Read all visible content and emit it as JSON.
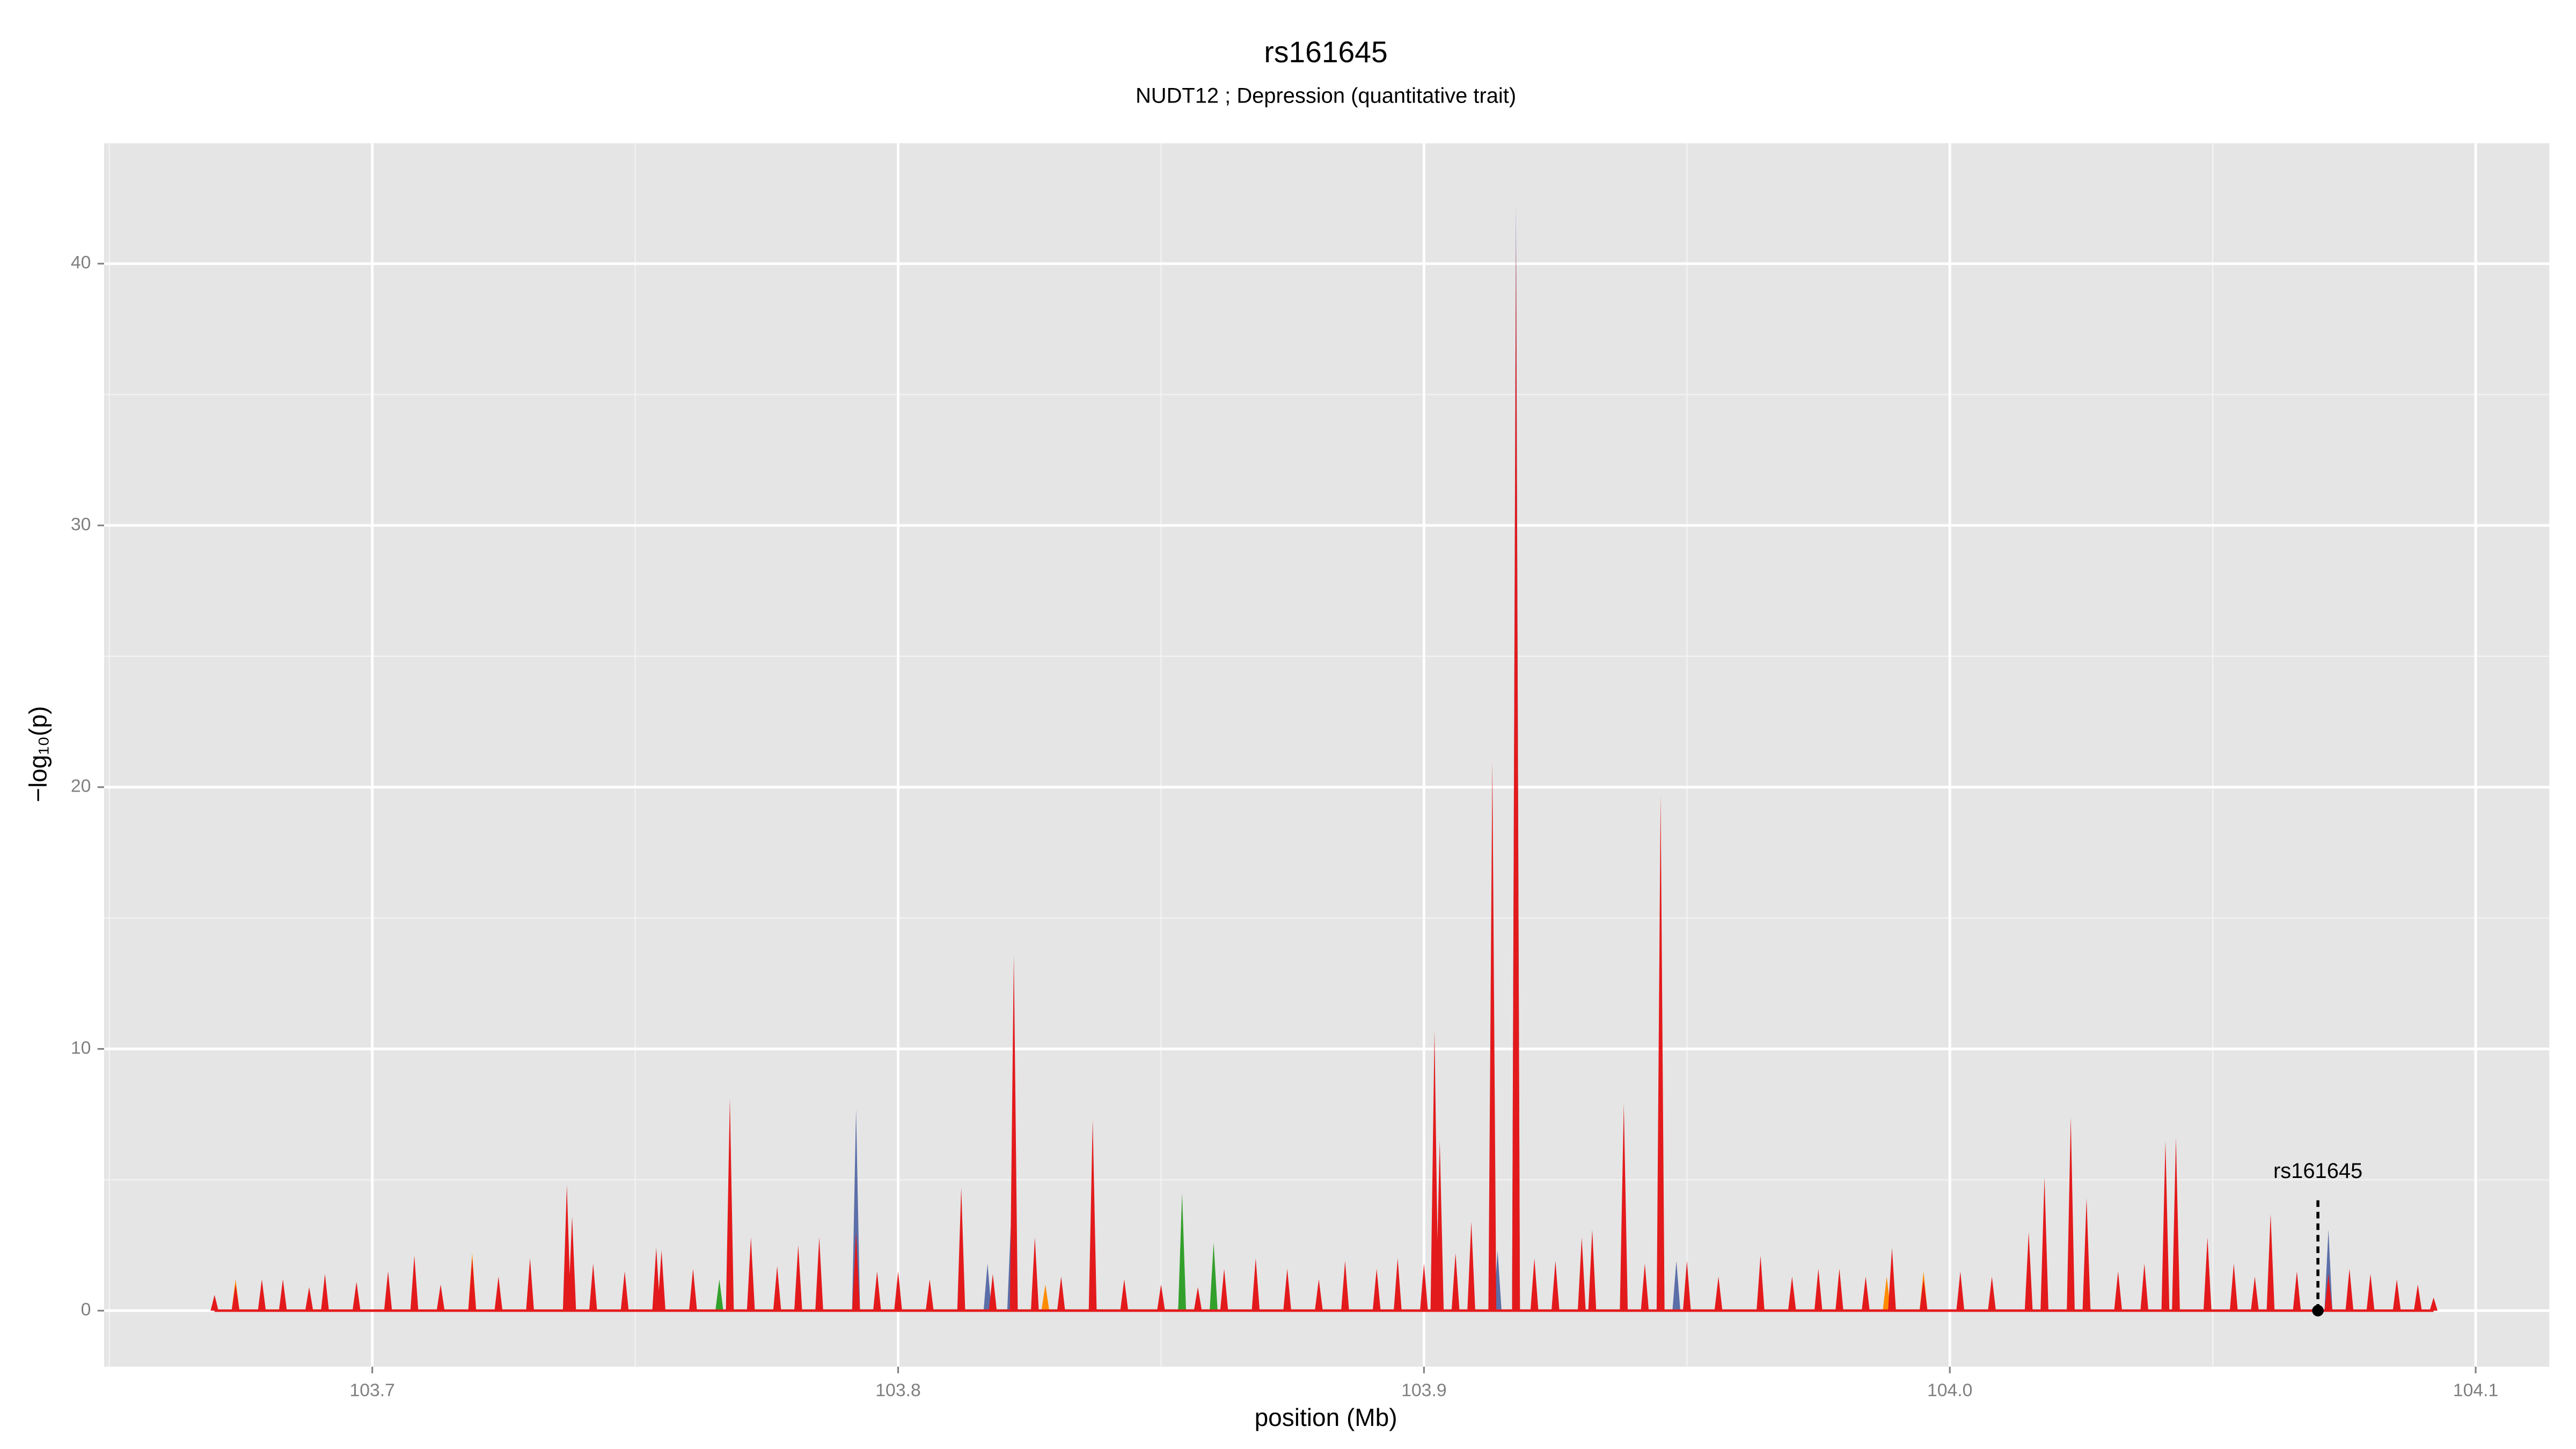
{
  "chart_data": {
    "type": "spike",
    "title": "rs161645",
    "subtitle": "NUDT12 ; Depression (quantitative trait)",
    "xlabel": "position (Mb)",
    "ylabel": "−log₁₀(p)",
    "xlim": [
      103.649,
      104.114
    ],
    "ylim": [
      -2.14,
      44.6
    ],
    "xticks": [
      103.7,
      103.8,
      103.9,
      {
        "value": 104,
        "label": "104.0"
      },
      104.1
    ],
    "yticks": [
      0,
      10,
      20,
      30,
      40
    ],
    "grid": true,
    "series": [
      {
        "color": "#5b6ea8",
        "x": [
          103.792,
          103.817,
          103.8215,
          103.914,
          103.9175,
          103.948,
          104.002,
          104.026,
          104.072
        ],
        "values": [
          7.7,
          1.8,
          3.6,
          2.3,
          42.3,
          1.9,
          1.4,
          4.0,
          3.1
        ]
      },
      {
        "color": "#ff8c00",
        "x": [
          103.674,
          103.719,
          103.828,
          103.988,
          103.995
        ],
        "values": [
          1.2,
          2.2,
          1.0,
          1.3,
          1.5
        ]
      },
      {
        "color": "#33a02c",
        "x": [
          103.766,
          103.854,
          103.86
        ],
        "values": [
          1.2,
          4.5,
          2.6
        ]
      },
      {
        "color": "#e31a1c",
        "x": [
          103.67,
          103.674,
          103.679,
          103.683,
          103.688,
          103.691,
          103.697,
          103.703,
          103.708,
          103.713,
          103.719,
          103.724,
          103.73,
          103.737,
          103.738,
          103.742,
          103.748,
          103.754,
          103.755,
          103.761,
          103.768,
          103.772,
          103.777,
          103.781,
          103.785,
          103.792,
          103.796,
          103.8,
          103.806,
          103.812,
          103.818,
          103.822,
          103.826,
          103.831,
          103.837,
          103.843,
          103.85,
          103.857,
          103.862,
          103.868,
          103.874,
          103.88,
          103.885,
          103.891,
          103.895,
          103.9,
          103.902,
          103.903,
          103.906,
          103.909,
          103.913,
          103.9175,
          103.921,
          103.925,
          103.93,
          103.932,
          103.938,
          103.942,
          103.945,
          103.95,
          103.956,
          103.964,
          103.97,
          103.975,
          103.979,
          103.984,
          103.989,
          103.995,
          104.002,
          104.008,
          104.015,
          104.018,
          104.023,
          104.026,
          104.032,
          104.037,
          104.041,
          104.043,
          104.049,
          104.054,
          104.058,
          104.061,
          104.066,
          104.072,
          104.076,
          104.08,
          104.085,
          104.089,
          104.092
        ],
        "values": [
          0.6,
          1.0,
          1.2,
          1.2,
          0.9,
          1.4,
          1.1,
          1.5,
          2.1,
          1.0,
          2.0,
          1.3,
          2.0,
          4.8,
          3.6,
          1.8,
          1.5,
          2.4,
          2.3,
          1.6,
          8.1,
          2.8,
          1.7,
          2.5,
          2.8,
          3.0,
          1.5,
          1.5,
          1.2,
          4.7,
          1.4,
          13.6,
          2.8,
          1.3,
          7.3,
          1.2,
          1.0,
          0.9,
          1.6,
          2.0,
          1.6,
          1.2,
          1.9,
          1.6,
          2.0,
          1.8,
          10.7,
          6.5,
          2.2,
          3.4,
          21.0,
          41.0,
          2.0,
          1.9,
          2.8,
          3.1,
          7.9,
          1.8,
          19.7,
          1.9,
          1.3,
          2.1,
          1.3,
          1.6,
          1.6,
          1.3,
          2.4,
          1.2,
          1.5,
          1.3,
          3.0,
          5.1,
          7.4,
          4.3,
          1.5,
          1.8,
          6.5,
          6.6,
          2.8,
          1.8,
          1.3,
          3.7,
          1.5,
          1.4,
          1.6,
          1.4,
          1.2,
          1.0,
          0.5
        ]
      }
    ],
    "annotation": {
      "label": "rs161645",
      "x": 104.07,
      "y": 0
    }
  }
}
